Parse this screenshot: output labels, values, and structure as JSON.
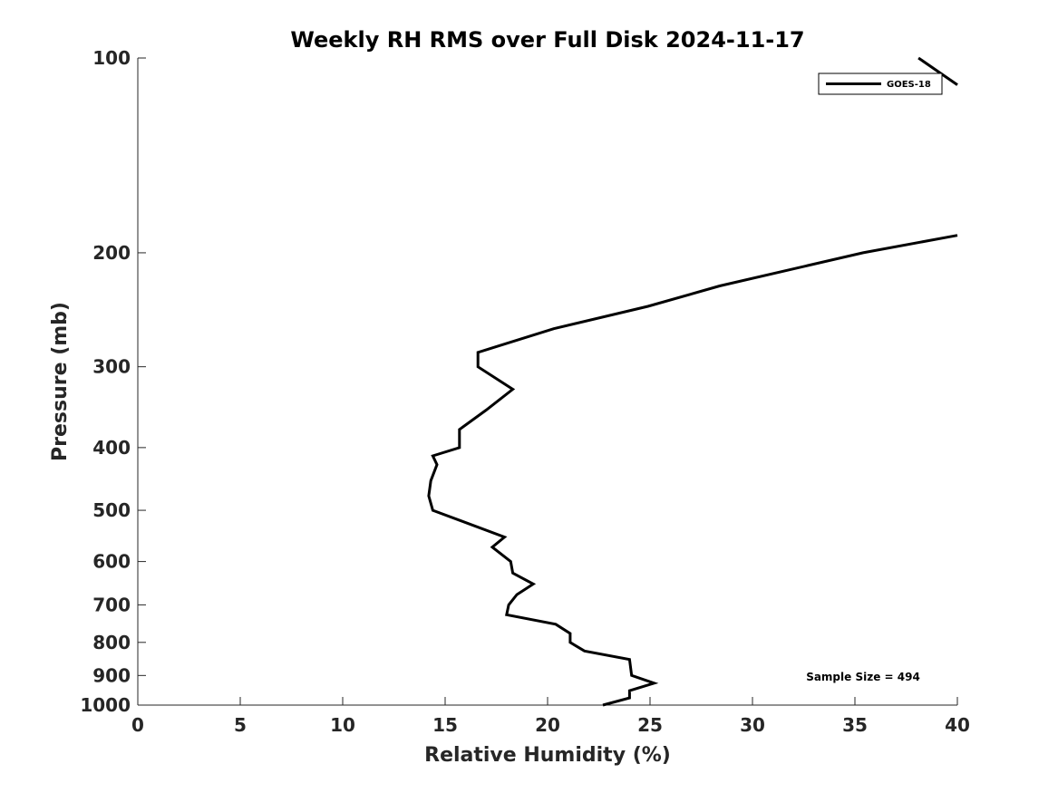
{
  "chart_data": {
    "type": "line",
    "title": "Weekly RH RMS over Full Disk 2024-11-17",
    "xlabel": "Relative Humidity (%)",
    "ylabel": "Pressure (mb)",
    "xlim": [
      0,
      40
    ],
    "ylim": [
      100,
      1000
    ],
    "y_scale": "log",
    "y_reversed": true,
    "x_ticks": [
      "0",
      "5",
      "10",
      "15",
      "20",
      "25",
      "30",
      "35",
      "40"
    ],
    "y_ticks": [
      "100",
      "200",
      "300",
      "400",
      "500",
      "600",
      "700",
      "800",
      "900",
      "1000"
    ],
    "grid": false,
    "legend_position": "top-right",
    "series": [
      {
        "name": "GOES-18",
        "color": "#000000",
        "points": [
          [
            22.7,
            1000
          ],
          [
            24.0,
            975
          ],
          [
            24.0,
            950
          ],
          [
            25.2,
            925
          ],
          [
            24.1,
            900
          ],
          [
            24.0,
            850
          ],
          [
            21.8,
            825
          ],
          [
            21.1,
            800
          ],
          [
            21.1,
            775
          ],
          [
            20.4,
            750
          ],
          [
            18.0,
            725
          ],
          [
            18.1,
            700
          ],
          [
            18.5,
            675
          ],
          [
            19.3,
            650
          ],
          [
            18.3,
            625
          ],
          [
            18.2,
            600
          ],
          [
            17.3,
            570
          ],
          [
            17.9,
            550
          ],
          [
            14.4,
            500
          ],
          [
            14.2,
            475
          ],
          [
            14.3,
            450
          ],
          [
            14.6,
            425
          ],
          [
            14.4,
            412
          ],
          [
            15.7,
            400
          ],
          [
            15.7,
            375
          ],
          [
            17.0,
            350
          ],
          [
            18.3,
            325
          ],
          [
            16.6,
            300
          ],
          [
            16.6,
            285
          ],
          [
            20.3,
            262
          ],
          [
            24.9,
            242
          ],
          [
            28.4,
            225
          ],
          [
            35.4,
            200
          ],
          [
            40.0,
            188
          ]
        ]
      },
      {
        "name": "",
        "color": "#000000",
        "points": [
          [
            38.1,
            100
          ],
          [
            40.0,
            110
          ]
        ]
      }
    ],
    "annotation": "Sample Size = 494"
  }
}
